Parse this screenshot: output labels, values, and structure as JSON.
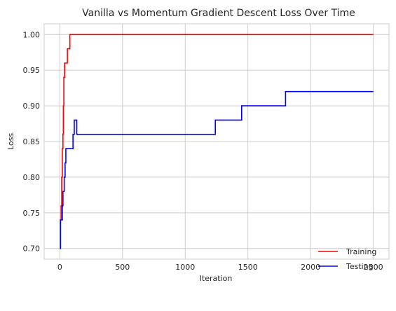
{
  "chart_data": {
    "type": "line",
    "title": "Vanilla vs Momentum Gradient Descent Loss Over Time",
    "xlabel": "Iteration",
    "ylabel": "Loss",
    "xlim": [
      -125,
      2625
    ],
    "ylim": [
      0.685,
      1.015
    ],
    "xticks": [
      0,
      500,
      1000,
      1500,
      2000,
      2500
    ],
    "xtick_labels": [
      "0",
      "500",
      "1000",
      "1500",
      "2000",
      "2500"
    ],
    "yticks": [
      0.7,
      0.75,
      0.8,
      0.85,
      0.9,
      0.95,
      1.0
    ],
    "ytick_labels": [
      "0.70",
      "0.75",
      "0.80",
      "0.85",
      "0.90",
      "0.95",
      "1.00"
    ],
    "grid": true,
    "legend_position": "lower-right",
    "series": [
      {
        "name": "Training",
        "color": "#ff0000",
        "step": true,
        "points": [
          [
            0,
            0.7
          ],
          [
            5,
            0.74
          ],
          [
            10,
            0.76
          ],
          [
            15,
            0.8
          ],
          [
            20,
            0.84
          ],
          [
            25,
            0.86
          ],
          [
            28,
            0.9
          ],
          [
            32,
            0.94
          ],
          [
            38,
            0.96
          ],
          [
            60,
            0.98
          ],
          [
            80,
            1.0
          ],
          [
            2500,
            1.0
          ]
        ]
      },
      {
        "name": "Testing",
        "color": "#0000ff",
        "step": true,
        "points": [
          [
            0,
            0.7
          ],
          [
            5,
            0.74
          ],
          [
            20,
            0.76
          ],
          [
            25,
            0.78
          ],
          [
            35,
            0.8
          ],
          [
            42,
            0.82
          ],
          [
            48,
            0.84
          ],
          [
            105,
            0.86
          ],
          [
            115,
            0.88
          ],
          [
            135,
            0.86
          ],
          [
            1240,
            0.88
          ],
          [
            1450,
            0.9
          ],
          [
            1800,
            0.92
          ],
          [
            2500,
            0.92
          ]
        ]
      }
    ]
  }
}
